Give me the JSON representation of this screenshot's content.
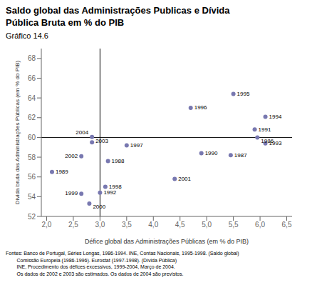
{
  "chart_data": {
    "type": "scatter",
    "title": "Saldo global das Administrações Publicas e Dívida\nPública Bruta em % do PIB",
    "subtitle": "Gráfico 14.6",
    "xlabel": "Défice global das Administrações Públicas (em % do PIB)",
    "ylabel": "Dívida bruta das Administrações Públicas (em % do PIB)",
    "color": "#7878b0",
    "grid": false,
    "xlim": [
      1.9,
      6.6
    ],
    "ylim": [
      52,
      69
    ],
    "xticks": [
      {
        "value": 2.0,
        "label": "2,0"
      },
      {
        "value": 2.5,
        "label": "2,5"
      },
      {
        "value": 3.0,
        "label": "3,0"
      },
      {
        "value": 3.5,
        "label": "3,5"
      },
      {
        "value": 4.0,
        "label": "4,0"
      },
      {
        "value": 4.5,
        "label": "4,5"
      },
      {
        "value": 5.0,
        "label": "5,0"
      },
      {
        "value": 5.5,
        "label": "5,5"
      },
      {
        "value": 6.0,
        "label": "6,0"
      },
      {
        "value": 6.5,
        "label": "6,5"
      }
    ],
    "yticks": [
      52,
      54,
      56,
      58,
      60,
      62,
      64,
      66,
      68
    ],
    "vline": 3.0,
    "hline": 60.0,
    "labels": [
      "1989",
      "1990",
      "1991",
      "1992",
      "1993",
      "1994",
      "1995",
      "1996",
      "1997",
      "1998",
      "1999",
      "2000",
      "2001",
      "2002",
      "2003",
      "2004",
      "1986",
      "1987",
      "1988"
    ],
    "x": [
      2.1,
      4.9,
      5.9,
      3.0,
      6.1,
      6.1,
      5.5,
      4.7,
      3.5,
      3.1,
      2.65,
      2.8,
      4.4,
      2.65,
      2.85,
      2.85,
      5.95,
      5.45,
      3.15
    ],
    "y": [
      56.5,
      58.4,
      60.8,
      54.4,
      59.4,
      62.1,
      64.4,
      63.0,
      59.2,
      55.0,
      54.3,
      53.3,
      55.8,
      58.1,
      59.5,
      60.05,
      60.0,
      58.2,
      57.6
    ],
    "footnote_lines": [
      "Fontes: Banco de Portugal, Séries Longas, 1986-1994. INE, Contas Nacionais, 1995-1998. (Saldo global)",
      "        Comissão Europeia (1986-1996). Eurostat (1997-1998). (Dívida Pública)",
      "        INE, Procedimento dos défices excessivos, 1999-2004, Março de 2004.",
      "        Os dados de 2002 e 2003 são estimados. Os dados de 2004 são previstos."
    ]
  }
}
